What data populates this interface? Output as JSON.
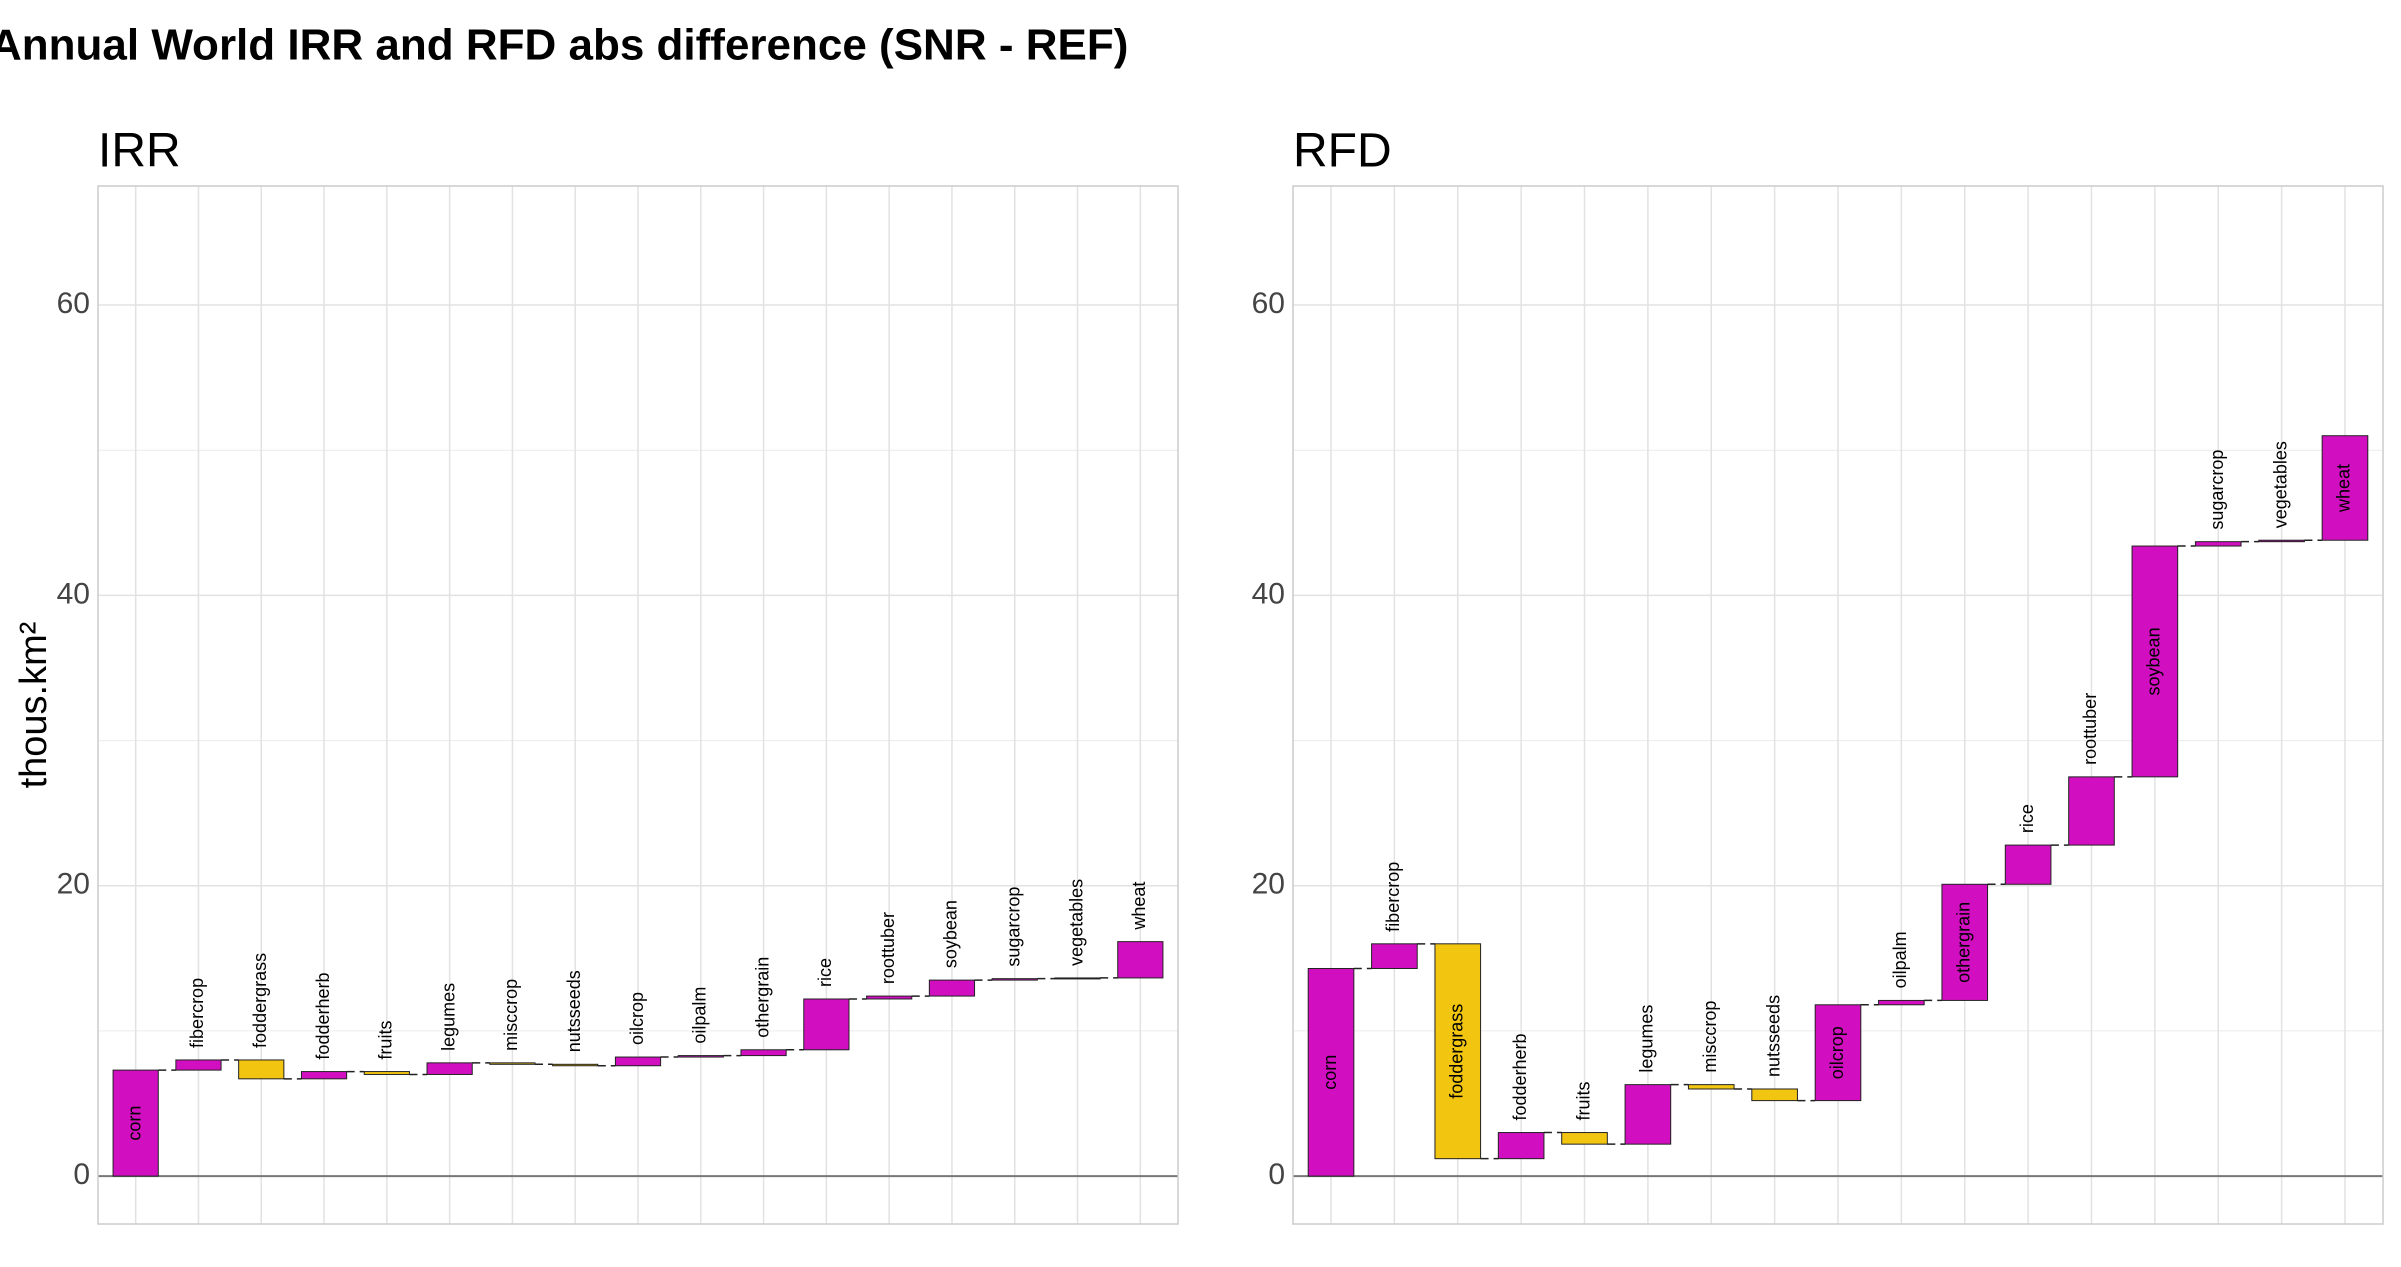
{
  "title": "Annual World IRR and RFD abs difference (SNR - REF)",
  "chart_data": [
    {
      "type": "waterfall",
      "title": "IRR",
      "ylabel": "thous.km²",
      "categories": [
        "corn",
        "fibercrop",
        "foddergrass",
        "fodderherb",
        "fruits",
        "legumes",
        "misccrop",
        "nutsseeds",
        "oilcrop",
        "oilpalm",
        "othergrain",
        "rice",
        "roottuber",
        "soybean",
        "sugarcrop",
        "vegetables",
        "wheat"
      ],
      "values": [
        7.3,
        0.7,
        -1.3,
        0.5,
        -0.2,
        0.8,
        -0.1,
        -0.1,
        0.6,
        0.1,
        0.4,
        3.5,
        0.2,
        1.1,
        0.1,
        0.05,
        2.5
      ],
      "color_increase": "#d10fc0",
      "color_decrease": "#f2c511",
      "ylim": [
        -3.3,
        68.2
      ],
      "yticks": [
        0,
        20,
        40,
        60
      ],
      "grid": true
    },
    {
      "type": "waterfall",
      "title": "RFD",
      "categories": [
        "corn",
        "fibercrop",
        "foddergrass",
        "fodderherb",
        "fruits",
        "legumes",
        "misccrop",
        "nutsseeds",
        "oilcrop",
        "oilpalm",
        "othergrain",
        "rice",
        "roottuber",
        "soybean",
        "sugarcrop",
        "vegetables",
        "wheat"
      ],
      "values": [
        14.3,
        1.7,
        -14.8,
        1.8,
        -0.8,
        4.1,
        -0.3,
        -0.8,
        6.6,
        0.3,
        8.0,
        2.7,
        4.7,
        15.9,
        0.3,
        0.1,
        7.2
      ],
      "color_increase": "#d10fc0",
      "color_decrease": "#f2c511",
      "ylim": [
        -3.3,
        68.2
      ],
      "yticks": [
        0,
        20,
        40,
        60
      ],
      "grid": true
    }
  ]
}
